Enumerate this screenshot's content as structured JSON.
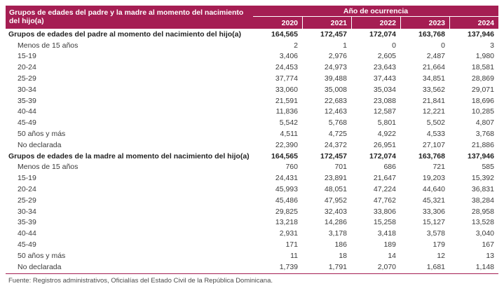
{
  "colors": {
    "header_bg": "#A51E53",
    "header_text": "#FFFFFF",
    "rule": "#A51E53",
    "body_text": "#3A3A3A"
  },
  "table": {
    "corner_header": "Grupos de edades del padre y la madre al momento del nacimiento del hijo(a)",
    "year_group_header": "Año de ocurrencia",
    "years": [
      "2020",
      "2021",
      "2022",
      "2023",
      "2024"
    ],
    "rows": [
      {
        "label": "Grupos de edades del padre al momento del nacimiento del hijo(a)",
        "bold": true,
        "values": [
          "164,565",
          "172,457",
          "172,074",
          "163,768",
          "137,946"
        ]
      },
      {
        "label": "Menos de 15 años",
        "bold": false,
        "values": [
          "2",
          "1",
          "0",
          "0",
          "3"
        ]
      },
      {
        "label": "15-19",
        "bold": false,
        "values": [
          "3,406",
          "2,976",
          "2,605",
          "2,487",
          "1,980"
        ]
      },
      {
        "label": "20-24",
        "bold": false,
        "values": [
          "24,453",
          "24,973",
          "23,643",
          "21,664",
          "18,581"
        ]
      },
      {
        "label": "25-29",
        "bold": false,
        "values": [
          "37,774",
          "39,488",
          "37,443",
          "34,851",
          "28,869"
        ]
      },
      {
        "label": "30-34",
        "bold": false,
        "values": [
          "33,060",
          "35,008",
          "35,034",
          "33,562",
          "29,071"
        ]
      },
      {
        "label": "35-39",
        "bold": false,
        "values": [
          "21,591",
          "22,683",
          "23,088",
          "21,841",
          "18,696"
        ]
      },
      {
        "label": "40-44",
        "bold": false,
        "values": [
          "11,836",
          "12,463",
          "12,587",
          "12,221",
          "10,285"
        ]
      },
      {
        "label": "45-49",
        "bold": false,
        "values": [
          "5,542",
          "5,768",
          "5,801",
          "5,502",
          "4,807"
        ]
      },
      {
        "label": "50 años y más",
        "bold": false,
        "values": [
          "4,511",
          "4,725",
          "4,922",
          "4,533",
          "3,768"
        ]
      },
      {
        "label": "No declarada",
        "bold": false,
        "values": [
          "22,390",
          "24,372",
          "26,951",
          "27,107",
          "21,886"
        ]
      },
      {
        "label": "Grupos de edades de la madre al momento del nacimiento del hijo(a)",
        "bold": true,
        "values": [
          "164,565",
          "172,457",
          "172,074",
          "163,768",
          "137,946"
        ]
      },
      {
        "label": "Menos de 15 años",
        "bold": false,
        "values": [
          "760",
          "701",
          "686",
          "721",
          "585"
        ]
      },
      {
        "label": "15-19",
        "bold": false,
        "values": [
          "24,431",
          "23,891",
          "21,647",
          "19,203",
          "15,392"
        ]
      },
      {
        "label": "20-24",
        "bold": false,
        "values": [
          "45,993",
          "48,051",
          "47,224",
          "44,640",
          "36,831"
        ]
      },
      {
        "label": "25-29",
        "bold": false,
        "values": [
          "45,486",
          "47,952",
          "47,762",
          "45,321",
          "38,284"
        ]
      },
      {
        "label": "30-34",
        "bold": false,
        "values": [
          "29,825",
          "32,403",
          "33,806",
          "33,306",
          "28,958"
        ]
      },
      {
        "label": "35-39",
        "bold": false,
        "values": [
          "13,218",
          "14,286",
          "15,258",
          "15,127",
          "13,528"
        ]
      },
      {
        "label": "40-44",
        "bold": false,
        "values": [
          "2,931",
          "3,178",
          "3,418",
          "3,578",
          "3,040"
        ]
      },
      {
        "label": "45-49",
        "bold": false,
        "values": [
          "171",
          "186",
          "189",
          "179",
          "167"
        ]
      },
      {
        "label": "50 años y más",
        "bold": false,
        "values": [
          "11",
          "18",
          "14",
          "12",
          "13"
        ]
      },
      {
        "label": "No declarada",
        "bold": false,
        "values": [
          "1,739",
          "1,791",
          "2,070",
          "1,681",
          "1,148"
        ]
      }
    ]
  },
  "footer": {
    "source": "Fuente: Registros administrativos, Oficialías del Estado Civil de la República Dominicana."
  }
}
